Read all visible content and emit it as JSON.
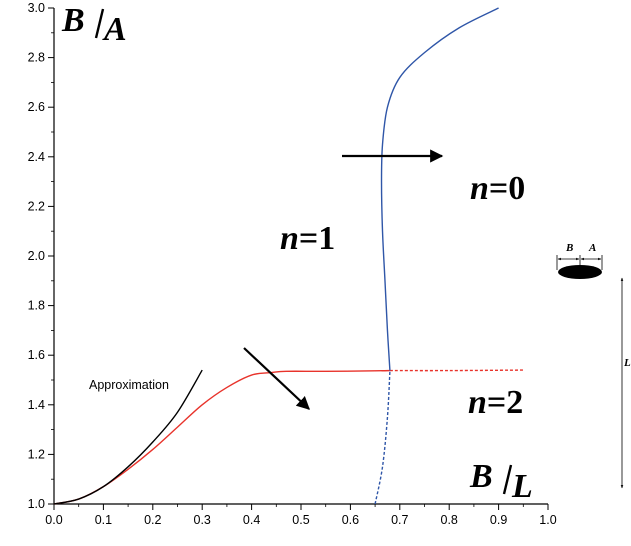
{
  "chart_data": {
    "type": "line",
    "title": "",
    "xlabel": {
      "main": "B",
      "sub": "L"
    },
    "ylabel": {
      "main": "B",
      "sub": "A"
    },
    "xlim": [
      0.0,
      1.0
    ],
    "ylim": [
      1.0,
      3.0
    ],
    "x_ticks": [
      "0.0",
      "0.1",
      "0.2",
      "0.3",
      "0.4",
      "0.5",
      "0.6",
      "0.7",
      "0.8",
      "0.9",
      "1.0"
    ],
    "y_ticks": [
      "1.0",
      "1.2",
      "1.4",
      "1.6",
      "1.8",
      "2.0",
      "2.2",
      "2.4",
      "2.6",
      "2.8",
      "3.0"
    ],
    "grid": false,
    "series": [
      {
        "name": "",
        "color": "#e8332b",
        "style": "solid",
        "x": [
          0.0,
          0.05,
          0.1,
          0.15,
          0.2,
          0.25,
          0.3,
          0.35,
          0.4,
          0.44,
          0.47,
          0.55,
          0.65,
          0.68
        ],
        "y": [
          1.0,
          1.02,
          1.07,
          1.14,
          1.22,
          1.31,
          1.4,
          1.47,
          1.52,
          1.53,
          1.535,
          1.535,
          1.537,
          1.538
        ]
      },
      {
        "name": "",
        "color": "#e8332b",
        "style": "dashed",
        "x": [
          0.68,
          0.8,
          0.95
        ],
        "y": [
          1.538,
          1.538,
          1.54
        ]
      },
      {
        "name": "Approximation",
        "color": "#000000",
        "style": "solid",
        "x": [
          0.0,
          0.05,
          0.1,
          0.15,
          0.2,
          0.25,
          0.3
        ],
        "y": [
          1.0,
          1.02,
          1.07,
          1.15,
          1.25,
          1.37,
          1.54
        ]
      },
      {
        "name": "",
        "color": "#2f56a8",
        "style": "solid",
        "x": [
          0.68,
          0.675,
          0.67,
          0.665,
          0.663,
          0.665,
          0.675,
          0.7,
          0.75,
          0.82,
          0.9
        ],
        "y": [
          1.538,
          1.7,
          1.9,
          2.1,
          2.3,
          2.45,
          2.6,
          2.72,
          2.82,
          2.92,
          3.0
        ]
      },
      {
        "name": "",
        "color": "#2f56a8",
        "style": "dashed",
        "x": [
          0.65,
          0.665,
          0.675,
          0.68
        ],
        "y": [
          1.0,
          1.15,
          1.35,
          1.538
        ]
      }
    ],
    "region_labels": [
      {
        "n": "n",
        "val": "=0",
        "x": 0.81,
        "y": 2.27
      },
      {
        "n": "n",
        "val": "=1",
        "x": 0.48,
        "y": 2.05
      },
      {
        "n": "n",
        "val": "=2",
        "x": 0.8,
        "y": 1.38
      }
    ],
    "annotations": [
      {
        "text": "Approximation",
        "x": 0.11,
        "y": 1.47
      }
    ],
    "arrows": [
      {
        "from": [
          0.57,
          2.41
        ],
        "to": [
          0.76,
          2.41
        ]
      },
      {
        "from": [
          0.36,
          1.63
        ],
        "to": [
          0.5,
          1.37
        ]
      }
    ],
    "inset": {
      "b_label": "B",
      "a_label": "A",
      "l_label": "L"
    }
  }
}
